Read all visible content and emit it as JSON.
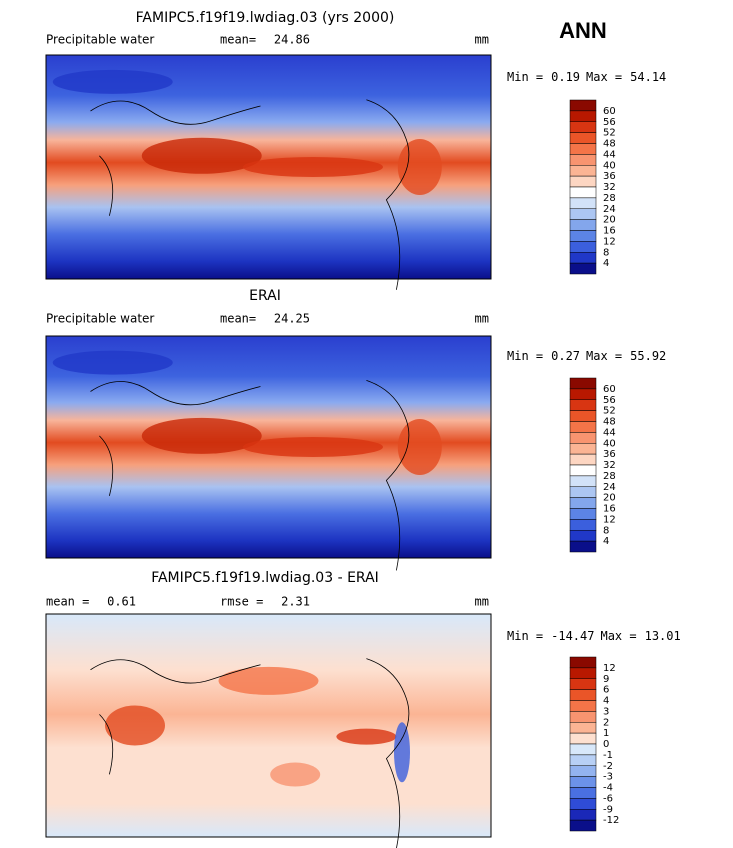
{
  "header": {
    "title": "ANN"
  },
  "panels": [
    {
      "title": "FAMIPC5.f19f19.lwdiag.03 (yrs 2000)",
      "left_label": "Precipitable water",
      "stats": [
        {
          "label": "mean=",
          "value": "24.86"
        }
      ],
      "units": "mm",
      "min_label": "Min =",
      "min": "0.19",
      "max_label": "Max =",
      "max": "54.14",
      "colorbar": {
        "labels": [
          "60",
          "56",
          "52",
          "48",
          "44",
          "40",
          "36",
          "32",
          "28",
          "24",
          "20",
          "16",
          "12",
          "8",
          "4"
        ],
        "colors": [
          "#8a0900",
          "#b81800",
          "#d83512",
          "#ea5528",
          "#f47448",
          "#f89470",
          "#fbb494",
          "#fdd6c2",
          "#ffffff",
          "#d2e2f8",
          "#acc6f2",
          "#83a6ec",
          "#5c84e6",
          "#3b5fdd",
          "#2038c8",
          "#0a0f8a"
        ]
      }
    },
    {
      "title": "ERAI",
      "left_label": "Precipitable water",
      "stats": [
        {
          "label": "mean=",
          "value": "24.25"
        }
      ],
      "units": "mm",
      "min_label": "Min =",
      "min": "0.27",
      "max_label": "Max =",
      "max": "55.92",
      "colorbar": {
        "labels": [
          "60",
          "56",
          "52",
          "48",
          "44",
          "40",
          "36",
          "32",
          "28",
          "24",
          "20",
          "16",
          "12",
          "8",
          "4"
        ],
        "colors": [
          "#8a0900",
          "#b81800",
          "#d83512",
          "#ea5528",
          "#f47448",
          "#f89470",
          "#fbb494",
          "#fdd6c2",
          "#ffffff",
          "#d2e2f8",
          "#acc6f2",
          "#83a6ec",
          "#5c84e6",
          "#3b5fdd",
          "#2038c8",
          "#0a0f8a"
        ]
      }
    },
    {
      "title": "FAMIPC5.f19f19.lwdiag.03 - ERAI",
      "stats": [
        {
          "label": "mean =",
          "value": "0.61"
        },
        {
          "label": "rmse =",
          "value": "2.31"
        }
      ],
      "units": "mm",
      "min_label": "Min =",
      "min": "-14.47",
      "max_label": "Max =",
      "max": "13.01",
      "colorbar": {
        "labels": [
          "12",
          "9",
          "6",
          "4",
          "3",
          "2",
          "1",
          "0",
          "-1",
          "-2",
          "-3",
          "-4",
          "-6",
          "-9",
          "-12"
        ],
        "colors": [
          "#8a0900",
          "#b81800",
          "#d83512",
          "#ea5528",
          "#f47448",
          "#f89470",
          "#fbb494",
          "#fde0d0",
          "#d8e8fa",
          "#b8d0f5",
          "#93b3ef",
          "#6c92e9",
          "#4a70e2",
          "#2f4cd6",
          "#1a28b8",
          "#0a0f8a"
        ]
      }
    }
  ]
}
